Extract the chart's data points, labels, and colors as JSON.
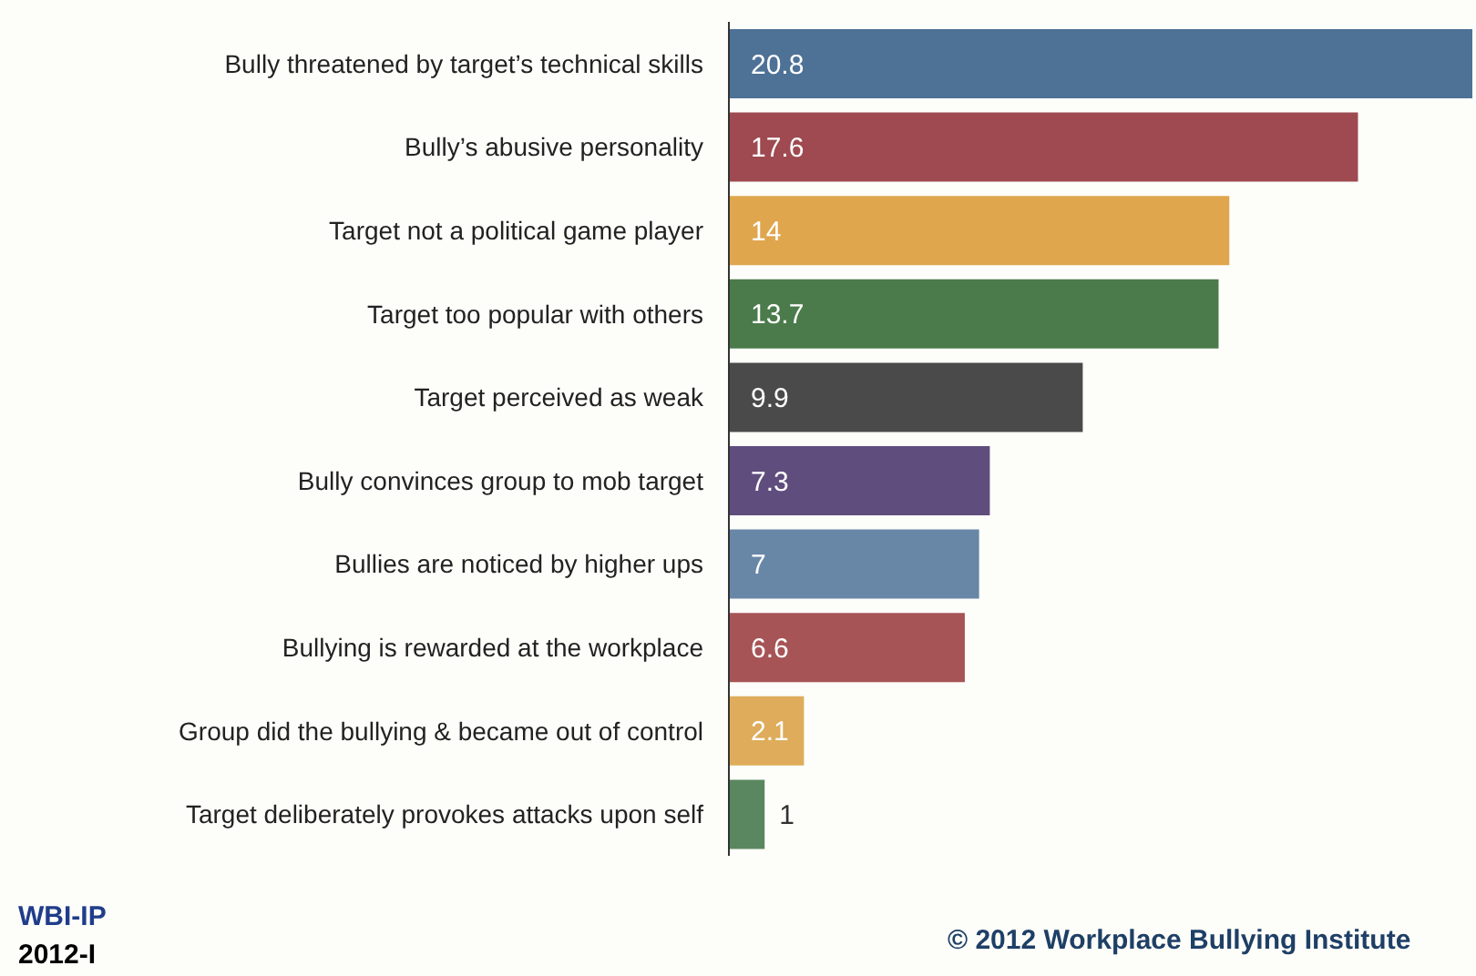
{
  "chart_data": {
    "type": "bar",
    "orientation": "horizontal",
    "data_labels": true,
    "categories": [
      "Bully threatened by target’s technical skills",
      "Bully’s abusive personality",
      "Target not a political game player",
      "Target too popular with others",
      "Target perceived as weak",
      "Bully convinces group to mob target",
      "Bullies are noticed by higher ups",
      "Bullying is rewarded at the workplace",
      "Group did the bullying & became out of control",
      "Target deliberately provokes attacks upon self"
    ],
    "values": [
      20.8,
      17.6,
      14,
      13.7,
      9.9,
      7.3,
      7,
      6.6,
      2.1,
      1
    ],
    "colors": [
      "#4e7196",
      "#9e4a50",
      "#dfa64e",
      "#4b7b4b",
      "#4a4a4a",
      "#5f4d7d",
      "#6887a7",
      "#a65456",
      "#deac5a",
      "#5a8760"
    ],
    "annotations": [
      "WBI-IP",
      "2012-I",
      "© 2012 Workplace Bullying Institute"
    ]
  }
}
